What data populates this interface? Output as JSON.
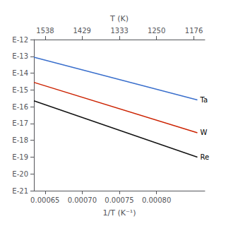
{
  "chart_data": {
    "type": "line",
    "log": "y",
    "grid": false,
    "xlabel": "1/T (K⁻¹)",
    "x2label": "T (K)",
    "x": [
      0.000635,
      0.000855
    ],
    "series": [
      {
        "name": "Ta",
        "color": "#3a6fcc",
        "values": [
          8.912509381337456e-14,
          2.51188643150958e-16
        ]
      },
      {
        "name": "W",
        "color": "#cc2200",
        "values": [
          2.818382931264454e-15,
          2.8183829312644537e-18
        ]
      },
      {
        "name": "Re",
        "color": "#111111",
        "values": [
          2.2387211385683394e-16,
          1e-19
        ]
      }
    ],
    "xlim": [
      0.000635,
      0.000865
    ],
    "xticks": [
      0.00065,
      {
        "value": 0.0007,
        "label": "0.00070"
      },
      0.00075,
      {
        "value": 0.0008,
        "label": "0.00080"
      }
    ],
    "x2lim": [
      0.000635,
      0.000865
    ],
    "x2ticks": [
      {
        "value": 0.0006501950585175553,
        "label": "1538"
      },
      {
        "value": 0.0006997900629811057,
        "label": "1429"
      },
      {
        "value": 0.0007501875468867217,
        "label": "1333"
      },
      {
        "value": 0.0008,
        "label": "1250"
      },
      {
        "value": 0.0008503401360544218,
        "label": "1176"
      }
    ],
    "ylim": [
      1e-21,
      1e-12
    ],
    "yticks": [
      {
        "value": 1e-12,
        "label": "E-12"
      },
      {
        "value": 1e-13,
        "label": "E-13"
      },
      {
        "value": 1e-14,
        "label": "E-14"
      },
      {
        "value": 1e-15,
        "label": "E-15"
      },
      {
        "value": 1e-16,
        "label": "E-16"
      },
      {
        "value": 1e-17,
        "label": "E-17"
      },
      {
        "value": 1e-18,
        "label": "E-18"
      },
      {
        "value": 1e-19,
        "label": "E-19"
      },
      {
        "value": 1e-20,
        "label": "E-20"
      },
      {
        "value": 1e-21,
        "label": "E-21"
      }
    ]
  }
}
